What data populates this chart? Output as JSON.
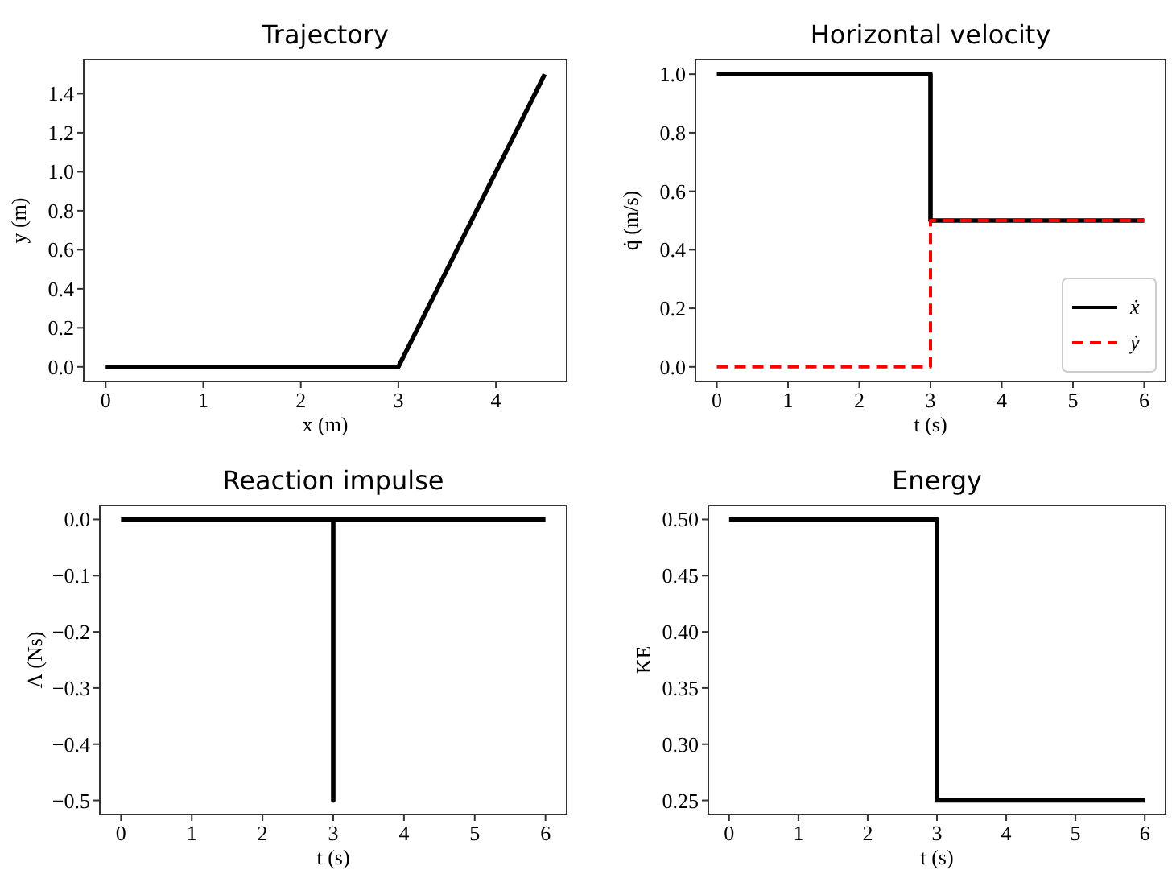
{
  "chart_data": [
    {
      "type": "line",
      "title": "Trajectory",
      "xlabel": "x (m)",
      "ylabel": "y (m)",
      "x": [
        0,
        3,
        4.5
      ],
      "series": [
        {
          "color": "#000000",
          "values": [
            0,
            0,
            1.5
          ]
        }
      ],
      "xlim": [
        -0.225,
        4.725
      ],
      "xticks": [
        0,
        1,
        2,
        3,
        4
      ],
      "ylim": [
        -0.075,
        1.575
      ],
      "yticks": [
        {
          "value": 0,
          "label": "0.0"
        },
        0.2,
        0.4,
        0.6,
        0.8,
        {
          "value": 1,
          "label": "1.0"
        },
        1.2,
        1.4
      ],
      "grid": false,
      "legend": false
    },
    {
      "type": "line",
      "title": "Horizontal velocity",
      "xlabel": "t (s)",
      "ylabel": "q̇ (m/s)",
      "x": [
        0,
        3,
        3,
        6
      ],
      "series": [
        {
          "name": "ẋ",
          "color": "#000000",
          "values": [
            1,
            1,
            0.5,
            0.5
          ],
          "line_style": "solid"
        },
        {
          "name": "ẏ",
          "color": "#ff0000",
          "values": [
            0,
            0,
            0.5,
            0.5
          ],
          "line_style": "dashed"
        }
      ],
      "xlim": [
        -0.3,
        6.3
      ],
      "xticks": [
        0,
        1,
        2,
        3,
        4,
        5,
        6
      ],
      "ylim": [
        -0.05,
        1.05
      ],
      "yticks": [
        {
          "value": 0,
          "label": "0.0"
        },
        0.2,
        0.4,
        0.6,
        0.8,
        {
          "value": 1,
          "label": "1.0"
        }
      ],
      "grid": false,
      "legend": "bottom right"
    },
    {
      "type": "line",
      "title": "Reaction impulse",
      "xlabel": "t (s)",
      "ylabel": "Λ (Ns)",
      "x": [
        0,
        3,
        3,
        3,
        6
      ],
      "series": [
        {
          "color": "#000000",
          "values": [
            0,
            0,
            -0.5,
            0,
            0
          ]
        }
      ],
      "xlim": [
        -0.3,
        6.3
      ],
      "xticks": [
        0,
        1,
        2,
        3,
        4,
        5,
        6
      ],
      "ylim": [
        -0.525,
        0.025
      ],
      "yticks": [
        {
          "value": -0.5,
          "label": "−0.5"
        },
        {
          "value": -0.4,
          "label": "−0.4"
        },
        {
          "value": -0.3,
          "label": "−0.3"
        },
        {
          "value": -0.2,
          "label": "−0.2"
        },
        {
          "value": -0.1,
          "label": "−0.1"
        },
        {
          "value": 0,
          "label": "0.0"
        }
      ],
      "grid": false,
      "legend": false
    },
    {
      "type": "line",
      "title": "Energy",
      "xlabel": "t (s)",
      "ylabel": "KE",
      "x": [
        0,
        3,
        3,
        6
      ],
      "series": [
        {
          "color": "#000000",
          "values": [
            0.5,
            0.5,
            0.25,
            0.25
          ]
        }
      ],
      "xlim": [
        -0.3,
        6.3
      ],
      "xticks": [
        0,
        1,
        2,
        3,
        4,
        5,
        6
      ],
      "ylim": [
        0.2375,
        0.5125
      ],
      "yticks": [
        0.25,
        {
          "value": 0.3,
          "label": "0.30"
        },
        0.35,
        {
          "value": 0.4,
          "label": "0.40"
        },
        0.45,
        {
          "value": 0.5,
          "label": "0.50"
        }
      ],
      "grid": false,
      "legend": false
    }
  ]
}
